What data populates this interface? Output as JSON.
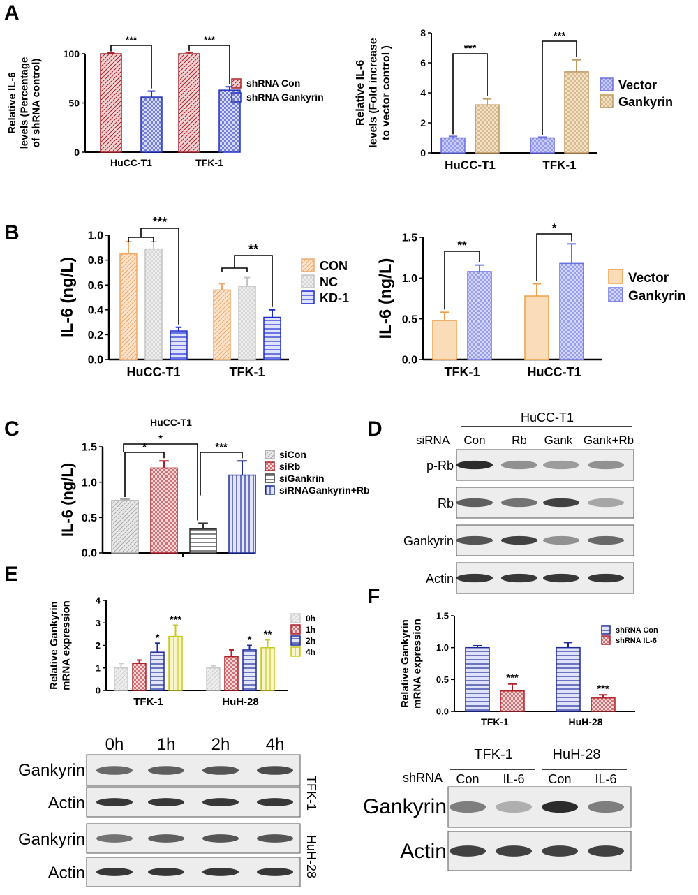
{
  "panel_letters": [
    "A",
    "B",
    "C",
    "D",
    "E",
    "F"
  ],
  "chart_data": [
    {
      "id": "A1",
      "type": "bar",
      "panel": "A",
      "categories": [
        "HuCC-T1",
        "TFK-1"
      ],
      "ylabel_lines": [
        "Relative IL-6",
        "levels (Percentage",
        "of shRNA control)"
      ],
      "ylim": [
        0,
        100
      ],
      "yticks": [
        "0",
        "50",
        "100"
      ],
      "series": [
        {
          "name": "shRNA Con",
          "values": [
            100,
            100
          ],
          "errors": [
            1,
            1.5
          ],
          "color": "#b0202a",
          "fill": "#f2d3d3",
          "pattern": "hatch"
        },
        {
          "name": "shRNA Gankyrin",
          "values": [
            56,
            63
          ],
          "errors": [
            6,
            3.5
          ],
          "color": "#2430c0",
          "fill": "#d6dbf5",
          "pattern": "check"
        }
      ],
      "brackets": [
        {
          "x1": [
            0,
            0
          ],
          "x2": [
            0,
            1
          ],
          "text": "***"
        },
        {
          "x1": [
            1,
            0
          ],
          "x2": [
            1,
            1
          ],
          "text": "***"
        }
      ],
      "legend": "right"
    },
    {
      "id": "A2",
      "type": "bar",
      "panel": "A",
      "categories": [
        "HuCC-T1",
        "TFK-1"
      ],
      "ylabel_lines": [
        "Relative IL-6",
        "levels (Fold increase",
        "to vector control )"
      ],
      "ylim": [
        0,
        8
      ],
      "yticks": [
        "0",
        "2",
        "4",
        "6",
        "8"
      ],
      "series": [
        {
          "name": "Vector",
          "values": [
            1,
            1
          ],
          "errors": [
            0.1,
            0.05
          ],
          "color": "#6a70e0",
          "fill": "#c9ccf6",
          "pattern": "check"
        },
        {
          "name": "Gankyrin",
          "values": [
            3.2,
            5.4
          ],
          "errors": [
            0.4,
            0.8
          ],
          "color": "#c09a60",
          "fill": "#f1e2c8",
          "pattern": "check"
        }
      ],
      "brackets": [
        {
          "x1": [
            0,
            0
          ],
          "x2": [
            0,
            1
          ],
          "text": "***"
        },
        {
          "x1": [
            1,
            0
          ],
          "x2": [
            1,
            1
          ],
          "text": "***"
        }
      ],
      "legend": "right"
    },
    {
      "id": "B1",
      "type": "bar",
      "panel": "B",
      "categories": [
        "HuCC-T1",
        "TFK-1"
      ],
      "ylabel": "IL-6 (ng/L)",
      "ylim": [
        0,
        1.0
      ],
      "yticks": [
        "0.0",
        "0.2",
        "0.4",
        "0.6",
        "0.8",
        "1.0"
      ],
      "series": [
        {
          "name": "CON",
          "values": [
            0.85,
            0.56
          ],
          "errors": [
            0.1,
            0.05
          ],
          "color": "#f0a868",
          "fill": "#fbe3cc",
          "pattern": "hatch"
        },
        {
          "name": "NC",
          "values": [
            0.89,
            0.59
          ],
          "errors": [
            0.06,
            0.07
          ],
          "color": "#c4c4c4",
          "fill": "#eeeeee",
          "pattern": "check"
        },
        {
          "name": "KD-1",
          "values": [
            0.23,
            0.34
          ],
          "errors": [
            0.03,
            0.06
          ],
          "color": "#1d2bcf",
          "fill": "#dfe3fb",
          "pattern": "hline"
        }
      ],
      "brackets": [
        {
          "group": 0,
          "text": "***"
        },
        {
          "group": 1,
          "text": "**"
        }
      ],
      "legend": "right"
    },
    {
      "id": "B2",
      "type": "bar",
      "panel": "B",
      "categories": [
        "TFK-1",
        "HuCC-T1"
      ],
      "ylabel": "IL-6 (ng/L)",
      "ylim": [
        0,
        1.5
      ],
      "yticks": [
        "0.0",
        "0.5",
        "1.0",
        "1.5"
      ],
      "series": [
        {
          "name": "Vector",
          "values": [
            0.48,
            0.78
          ],
          "errors": [
            0.1,
            0.15
          ],
          "color": "#f0a048",
          "fill": "#fbdcb8",
          "pattern": "solid"
        },
        {
          "name": "Gankyrin",
          "values": [
            1.08,
            1.18
          ],
          "errors": [
            0.08,
            0.24
          ],
          "color": "#6a70e0",
          "fill": "#d3d6f8",
          "pattern": "check"
        }
      ],
      "brackets": [
        {
          "x1": [
            0,
            0
          ],
          "x2": [
            0,
            1
          ],
          "text": "**"
        },
        {
          "x1": [
            1,
            0
          ],
          "x2": [
            1,
            1
          ],
          "text": "*"
        }
      ],
      "legend": "right"
    },
    {
      "id": "C",
      "type": "bar",
      "panel": "C",
      "title": "HuCC-T1",
      "categories": [
        "siCon",
        "siRb",
        "siGankrin",
        "siRNAGankyrin+Rb"
      ],
      "ylabel": "IL-6 (ng/L)",
      "ylim": [
        0,
        1.5
      ],
      "yticks": [
        "0.0",
        "0.5",
        "1.0",
        "1.5"
      ],
      "values": [
        0.74,
        1.2,
        0.34,
        1.1
      ],
      "errors": [
        0.02,
        0.1,
        0.08,
        0.2
      ],
      "colors": [
        "#a8a8a8",
        "#b0202a",
        "#333333",
        "#1d2b9a"
      ],
      "fills": [
        "#e8e8e8",
        "#f4d6d6",
        "#ffffff",
        "#e3e5f8"
      ],
      "patterns": [
        "hatch",
        "check",
        "hline",
        "vline"
      ],
      "brackets": [
        {
          "a": 0,
          "b": 1,
          "text": "*"
        },
        {
          "a": 0,
          "b": 2,
          "text": "*"
        },
        {
          "a": 2,
          "b": 3,
          "text": "***"
        }
      ],
      "legend": "right"
    },
    {
      "id": "E",
      "type": "bar",
      "panel": "E",
      "categories": [
        "TFK-1",
        "HuH-28"
      ],
      "ylabel_lines": [
        "Relative Gankyrin",
        "mRNA expression"
      ],
      "ylim": [
        0,
        4
      ],
      "yticks": [
        "0",
        "1",
        "2",
        "3",
        "4"
      ],
      "series": [
        {
          "name": "0h",
          "values": [
            1.0,
            1.0
          ],
          "errors": [
            0.2,
            0.1
          ],
          "color": "#cccccc",
          "fill": "#eeeeee",
          "pattern": "hatch"
        },
        {
          "name": "1h",
          "values": [
            1.2,
            1.5
          ],
          "errors": [
            0.15,
            0.3
          ],
          "color": "#b0202a",
          "fill": "#f4d6d6",
          "pattern": "check"
        },
        {
          "name": "2h",
          "values": [
            1.7,
            1.8
          ],
          "errors": [
            0.4,
            0.2
          ],
          "color": "#1d2b9a",
          "fill": "#e3e5f8",
          "pattern": "hline"
        },
        {
          "name": "4h",
          "values": [
            2.4,
            1.9
          ],
          "errors": [
            0.5,
            0.35
          ],
          "color": "#c8c820",
          "fill": "#f6f6c8",
          "pattern": "vline"
        }
      ],
      "sig": [
        {
          "g": 0,
          "s": 2,
          "text": "*"
        },
        {
          "g": 0,
          "s": 3,
          "text": "***"
        },
        {
          "g": 1,
          "s": 2,
          "text": "*"
        },
        {
          "g": 1,
          "s": 3,
          "text": "**"
        }
      ],
      "legend": "right"
    },
    {
      "id": "F",
      "type": "bar",
      "panel": "F",
      "categories": [
        "TFK-1",
        "HuH-28"
      ],
      "ylabel_lines": [
        "Relative Gankyrin",
        "mRNA expression"
      ],
      "ylim": [
        0,
        1.5
      ],
      "yticks": [
        "0.0",
        "0.5",
        "1.0",
        "1.5"
      ],
      "series": [
        {
          "name": "shRNA Con",
          "values": [
            1.0,
            1.0
          ],
          "errors": [
            0.03,
            0.08
          ],
          "color": "#1d2b9a",
          "fill": "#dfe2f8",
          "pattern": "hline"
        },
        {
          "name": "shRNA IL-6",
          "values": [
            0.32,
            0.21
          ],
          "errors": [
            0.11,
            0.05
          ],
          "color": "#b0202a",
          "fill": "#f4d6d6",
          "pattern": "check"
        }
      ],
      "sig": [
        {
          "g": 0,
          "s": 1,
          "text": "***"
        },
        {
          "g": 1,
          "s": 1,
          "text": "***"
        }
      ],
      "legend": "top-right"
    }
  ],
  "blots": {
    "D": {
      "title": "HuCC-T1",
      "row_label": "siRNA",
      "lanes": [
        "Con",
        "Rb",
        "Gank",
        "Gank+Rb"
      ],
      "rows": [
        {
          "name": "p-Rb",
          "intensity": [
            0.95,
            0.45,
            0.4,
            0.45
          ]
        },
        {
          "name": "Rb",
          "intensity": [
            0.7,
            0.6,
            0.85,
            0.35
          ]
        },
        {
          "name": "Gankyrin",
          "intensity": [
            0.75,
            0.85,
            0.45,
            0.65
          ]
        },
        {
          "name": "Actin",
          "intensity": [
            0.9,
            0.9,
            0.9,
            0.9
          ]
        }
      ]
    },
    "E": {
      "lanes": [
        "0h",
        "1h",
        "2h",
        "4h"
      ],
      "rows": [
        {
          "name": "Gankyrin",
          "intensity": [
            0.65,
            0.7,
            0.75,
            0.8
          ]
        },
        {
          "name": "Actin",
          "intensity": [
            0.9,
            0.9,
            0.9,
            0.9
          ]
        },
        {
          "name": "Gankyrin",
          "intensity": [
            0.6,
            0.7,
            0.75,
            0.75
          ]
        },
        {
          "name": "Actin",
          "intensity": [
            0.9,
            0.9,
            0.9,
            0.9
          ]
        }
      ],
      "side_labels": [
        "TFK-1",
        "HuH-28"
      ]
    },
    "F": {
      "cells": [
        "TFK-1",
        "HuH-28"
      ],
      "row_label": "shRNA",
      "lanes": [
        "Con",
        "IL-6",
        "Con",
        "IL-6"
      ],
      "rows": [
        {
          "name": "Gankyrin",
          "intensity": [
            0.55,
            0.3,
            0.95,
            0.55
          ]
        },
        {
          "name": "Actin",
          "intensity": [
            0.85,
            0.85,
            0.85,
            0.85
          ]
        }
      ]
    }
  }
}
